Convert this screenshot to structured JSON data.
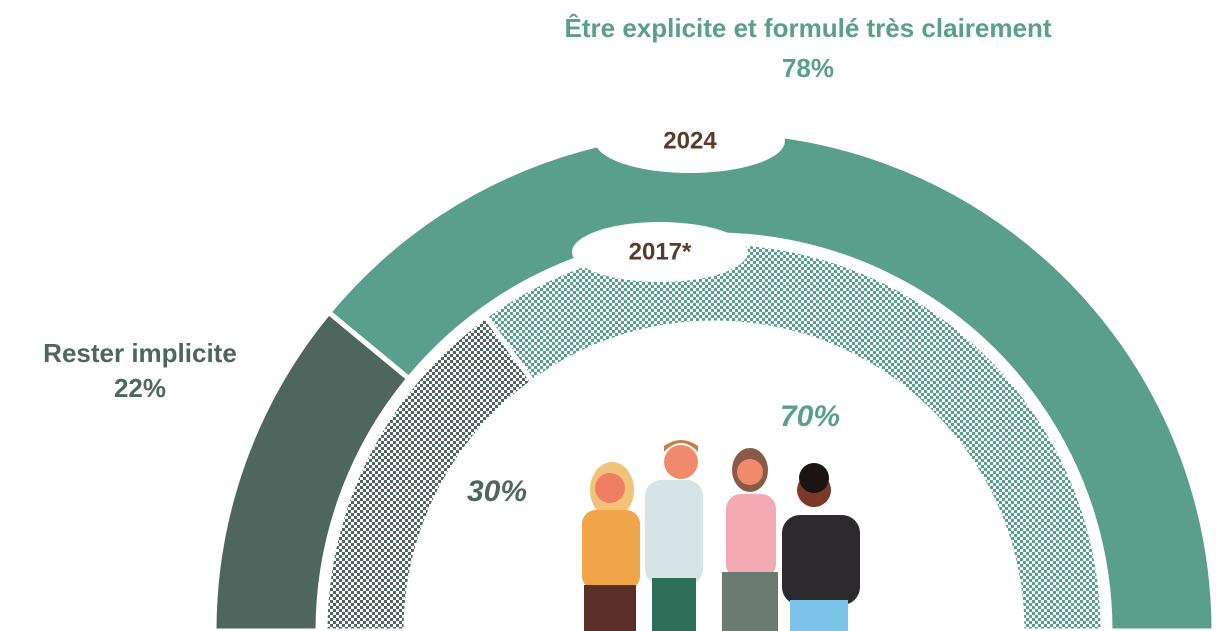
{
  "chart_data": {
    "type": "semi-donut",
    "categories": [
      "Rester implicite",
      "Être explicite et formulé très clairement"
    ],
    "colors": [
      "#4f665f",
      "#5a9e8c"
    ],
    "series": [
      {
        "name": "2024",
        "values": [
          22,
          78
        ],
        "value_labels": [
          "22%",
          "78%"
        ],
        "pattern": "solid"
      },
      {
        "name": "2017*",
        "values": [
          30,
          70
        ],
        "value_labels": [
          "30%",
          "70%"
        ],
        "pattern": "checkered"
      }
    ]
  }
}
